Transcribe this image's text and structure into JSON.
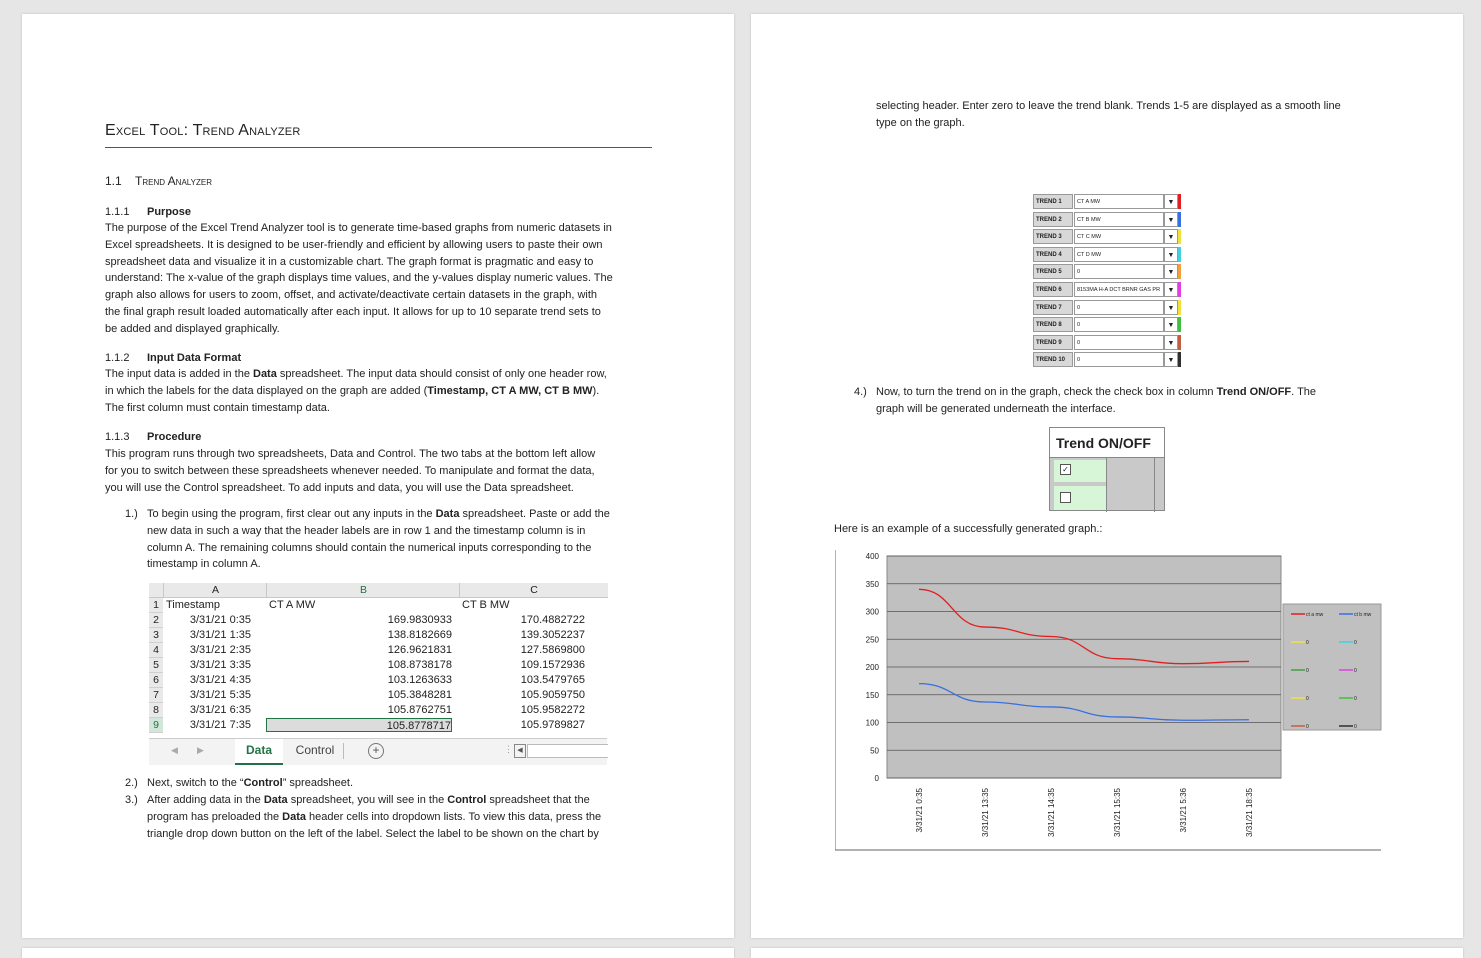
{
  "page1": {
    "title": "Excel Tool: Trend Analyzer",
    "section": {
      "number": "1.1",
      "title": "Trend Analyzer"
    },
    "purpose": {
      "number": "1.1.1",
      "heading": "Purpose",
      "lines": [
        "The purpose of the Excel Trend Analyzer tool is to generate time-based graphs from numeric datasets in",
        "Excel spreadsheets. It is designed to be user-friendly and efficient by allowing users to paste their own",
        "spreadsheet data and visualize it in a customizable chart. The graph format is pragmatic and easy to",
        "understand: The x-value of the graph displays time values, and the y-values display numeric values. The",
        "graph also allows for users to zoom, offset, and activate/deactivate certain datasets in the graph, with",
        "the final graph result loaded automatically after each input.  It allows for up to 10 separate trend sets to",
        "be added and displayed graphically."
      ]
    },
    "input_format": {
      "number": "1.1.2",
      "heading": "Input Data Format",
      "line1_a": "The input data is added in the ",
      "line1_b": "Data",
      "line1_c": " spreadsheet. The input data should consist of only one header row,",
      "line2_a": "in which the labels for the data displayed on the graph are added (",
      "line2_b": "Timestamp, CT A MW, CT B MW",
      "line2_c": ").",
      "line3": "The first column must contain timestamp data."
    },
    "procedure": {
      "number": "1.1.3",
      "heading": "Procedure",
      "lines": [
        "This program runs through two spreadsheets, Data and Control. The two tabs at the bottom left allow",
        "for you to switch between these spreadsheets whenever needed. To manipulate and format the data,",
        "you will use the Control spreadsheet. To add inputs and data, you will use the Data spreadsheet."
      ]
    },
    "step1": {
      "n": "1.)",
      "l1a": "To begin using the program, first clear out any inputs in the ",
      "l1b": "Data",
      "l1c": " spreadsheet. Paste or add the",
      "l2": "new data in such a way that the header labels are in row 1 and the timestamp column is in",
      "l3": "column A. The remaining columns should contain the numerical inputs corresponding to the",
      "l4": "timestamp in column A."
    },
    "step2": {
      "n": "2.)",
      "a": "Next, switch to the “",
      "b": "Control",
      "c": "” spreadsheet."
    },
    "step3": {
      "n": "3.)",
      "l1a": "After adding data in the ",
      "l1b": "Data",
      "l1c": " spreadsheet, you will see in the ",
      "l1d": "Control",
      "l1e": " spreadsheet that the",
      "l2a": "program has preloaded the ",
      "l2b": "Data",
      "l2c": " header cells into dropdown lists. To view this data, press the",
      "l3": "triangle drop down button on the left of the label. Select the label to be shown on the chart by"
    },
    "sheet": {
      "columns": [
        "A",
        "B",
        "C"
      ],
      "header": [
        "Timestamp",
        "CT A MW",
        "CT B MW"
      ],
      "rows": [
        [
          "3/31/21 0:35",
          "169.9830933",
          "170.4882722"
        ],
        [
          "3/31/21 1:35",
          "138.8182669",
          "139.3052237"
        ],
        [
          "3/31/21 2:35",
          "126.9621831",
          "127.5869800"
        ],
        [
          "3/31/21 3:35",
          "108.8738178",
          "109.1572936"
        ],
        [
          "3/31/21 4:35",
          "103.1263633",
          "103.5479765"
        ],
        [
          "3/31/21 5:35",
          "105.3848281",
          "105.9059750"
        ],
        [
          "3/31/21 6:35",
          "105.8762751",
          "105.9582272"
        ],
        [
          "3/31/21 7:35",
          "105.8778717",
          "105.9789827"
        ]
      ],
      "row_numbers": [
        "1",
        "2",
        "3",
        "4",
        "5",
        "6",
        "7",
        "8",
        "9"
      ],
      "tabs": [
        "Data",
        "Control"
      ],
      "add_tab": "+"
    }
  },
  "page2": {
    "cont_l1": "selecting header. Enter zero to leave the trend blank. Trends 1-5 are displayed as a smooth line",
    "cont_l2": "type on the graph.",
    "trends": [
      {
        "label": "TREND 1",
        "value": "CT A MW",
        "color": "#e02020"
      },
      {
        "label": "TREND 2",
        "value": "CT B MW",
        "color": "#3a6fe0"
      },
      {
        "label": "TREND 3",
        "value": "CT C MW",
        "color": "#f0e040"
      },
      {
        "label": "TREND 4",
        "value": "CT D MW",
        "color": "#40d0e0"
      },
      {
        "label": "TREND 5",
        "value": "0",
        "color": "#f0a040"
      },
      {
        "label": "TREND 6",
        "value": "8153MA H-A DCT BRNR GAS PR",
        "color": "#e040e0"
      },
      {
        "label": "TREND 7",
        "value": "0",
        "color": "#f0e040"
      },
      {
        "label": "TREND 8",
        "value": "0",
        "color": "#40c040"
      },
      {
        "label": "TREND 9",
        "value": "0",
        "color": "#c06040"
      },
      {
        "label": "TREND 10",
        "value": "0",
        "color": "#303030"
      }
    ],
    "step4": {
      "n": "4.)",
      "a": "Now, to turn the trend on in the graph, check the check box in column ",
      "b": "Trend ON/OFF",
      "c": ". The",
      "l2": "graph will be generated underneath the interface."
    },
    "toggle_header": "Trend ON/OFF",
    "toggles": [
      {
        "checked": true
      },
      {
        "checked": false
      }
    ],
    "example_text": "Here is an example of a successfully generated graph.:"
  },
  "chart_data": {
    "type": "line",
    "x": [
      "3/31/21 0:35",
      "3/31/21 13:35",
      "3/31/21 14:35",
      "3/31/21 15:35",
      "3/31/21 5:36",
      "3/31/21 18:35"
    ],
    "series": [
      {
        "name": "ct a mw",
        "color": "#e02020",
        "values": [
          340,
          272,
          255,
          215,
          206,
          210
        ]
      },
      {
        "name": "ct b mw",
        "color": "#3a6fe0",
        "values": [
          170,
          137,
          128,
          110,
          104,
          105
        ]
      }
    ],
    "legend_extra": [
      {
        "name": "0",
        "color": "#f0e040"
      },
      {
        "name": "0",
        "color": "#40d0e0"
      },
      {
        "name": "0",
        "color": "#40a040"
      },
      {
        "name": "0",
        "color": "#e040e0"
      },
      {
        "name": "0",
        "color": "#f0e040"
      },
      {
        "name": "0",
        "color": "#40c040"
      },
      {
        "name": "0",
        "color": "#c06040"
      },
      {
        "name": "0",
        "color": "#303030"
      }
    ],
    "yticks": [
      "400",
      "350",
      "300",
      "250",
      "200",
      "150",
      "100",
      "50",
      "0"
    ],
    "ylim": [
      0,
      400
    ],
    "grid": true,
    "legend_position": "right"
  }
}
